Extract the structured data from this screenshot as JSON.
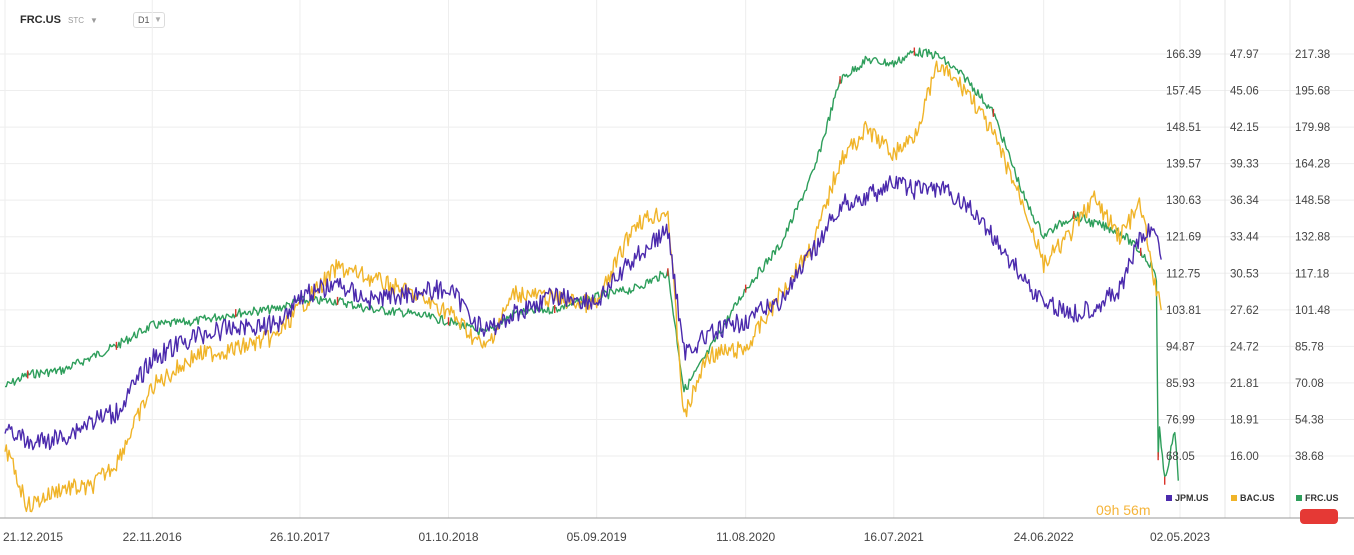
{
  "header": {
    "symbol": "FRC.US",
    "tag": "STC",
    "timeframe": "D1"
  },
  "timer": "09h 56m",
  "colors": {
    "jpm": "#4b2aad",
    "bac": "#f0b429",
    "frc_up": "#2e9e5b",
    "frc_down": "#d9342b",
    "grid": "#eeeeee",
    "axis_text": "#444444",
    "badge": "#e53935"
  },
  "chart_data": {
    "type": "line",
    "x_axis_dates": [
      "21.12.2015",
      "22.11.2016",
      "26.10.2017",
      "01.10.2018",
      "05.09.2019",
      "11.08.2020",
      "16.07.2021",
      "24.06.2022",
      "02.05.2023"
    ],
    "legend": [
      "JPM.US",
      "BAC.US",
      "FRC.US"
    ],
    "legend_position": "bottom-right",
    "grid": true,
    "axes": [
      {
        "series": "FRC.US",
        "ticks": [
          "166.39",
          "157.45",
          "148.51",
          "139.57",
          "130.63",
          "121.69",
          "112.75",
          "103.81",
          "94.87",
          "85.93",
          "76.99",
          "68.05"
        ]
      },
      {
        "series": "BAC.US",
        "ticks": [
          "47.97",
          "45.06",
          "42.15",
          "39.33",
          "36.34",
          "33.44",
          "30.53",
          "27.62",
          "24.72",
          "21.81",
          "18.91",
          "16.00"
        ]
      },
      {
        "series": "JPM.US",
        "ticks": [
          "217.38",
          "195.68",
          "179.98",
          "164.28",
          "148.58",
          "132.88",
          "117.18",
          "101.48",
          "85.78",
          "70.08",
          "54.38",
          "38.68"
        ]
      }
    ],
    "series": [
      {
        "name": "JPM.US",
        "axis": "JPM.US",
        "x": [
          "2015-12-21",
          "2016-02-11",
          "2016-05-01",
          "2016-07-01",
          "2016-09-01",
          "2016-11-22",
          "2017-03-01",
          "2017-06-01",
          "2017-09-01",
          "2017-10-26",
          "2018-01-20",
          "2018-04-01",
          "2018-07-01",
          "2018-10-01",
          "2018-12-24",
          "2019-03-01",
          "2019-06-01",
          "2019-09-05",
          "2019-12-01",
          "2020-02-15",
          "2020-03-23",
          "2020-05-15",
          "2020-08-11",
          "2020-11-01",
          "2021-01-15",
          "2021-03-15",
          "2021-05-15",
          "2021-07-16",
          "2021-09-01",
          "2021-10-25",
          "2022-01-01",
          "2022-03-01",
          "2022-05-15",
          "2022-06-24",
          "2022-09-01",
          "2022-10-15",
          "2022-12-15",
          "2023-02-01",
          "2023-03-06",
          "2023-03-20"
        ],
        "y": [
          53,
          44,
          47,
          54,
          58,
          82,
          92,
          96,
          97,
          110,
          115,
          108,
          111,
          113,
          94,
          102,
          110,
          107,
          127,
          139,
          85,
          92,
          99,
          108,
          130,
          150,
          154,
          160,
          157,
          158,
          150,
          136,
          116,
          107,
          102,
          105,
          112,
          136,
          140,
          126
        ]
      },
      {
        "name": "BAC.US",
        "axis": "BAC.US",
        "x": [
          "2015-12-21",
          "2016-02-11",
          "2016-05-01",
          "2016-07-01",
          "2016-09-01",
          "2016-11-22",
          "2017-03-01",
          "2017-06-01",
          "2017-09-01",
          "2017-10-26",
          "2018-01-20",
          "2018-04-01",
          "2018-07-01",
          "2018-10-01",
          "2018-12-24",
          "2019-03-01",
          "2019-06-01",
          "2019-09-05",
          "2019-12-01",
          "2020-02-15",
          "2020-03-23",
          "2020-05-15",
          "2020-08-11",
          "2020-11-01",
          "2021-01-15",
          "2021-03-15",
          "2021-05-15",
          "2021-07-16",
          "2021-09-01",
          "2021-10-25",
          "2022-01-01",
          "2022-03-01",
          "2022-05-15",
          "2022-06-24",
          "2022-09-01",
          "2022-10-15",
          "2022-12-15",
          "2023-02-01",
          "2023-03-06",
          "2023-03-20"
        ],
        "y": [
          16.8,
          12.0,
          13.5,
          13.4,
          15.5,
          21.5,
          24.0,
          24.5,
          25.5,
          27.8,
          31.0,
          30.2,
          29.0,
          27.5,
          24.5,
          29.0,
          28.5,
          28.0,
          34.5,
          35.5,
          19.0,
          24.0,
          24.5,
          29.0,
          33.0,
          39.5,
          42.0,
          40.0,
          41.5,
          47.0,
          45.0,
          41.5,
          35.5,
          31.2,
          34.0,
          36.5,
          33.5,
          36.0,
          29.5,
          27.6
        ]
      },
      {
        "name": "FRC.US",
        "axis": "FRC.US",
        "x": [
          "2015-12-21",
          "2016-02-11",
          "2016-05-01",
          "2016-07-01",
          "2016-09-01",
          "2016-11-22",
          "2017-03-01",
          "2017-06-01",
          "2017-09-01",
          "2017-10-26",
          "2018-01-20",
          "2018-04-01",
          "2018-07-01",
          "2018-10-01",
          "2018-12-24",
          "2019-03-01",
          "2019-06-01",
          "2019-09-05",
          "2019-12-01",
          "2020-02-15",
          "2020-03-23",
          "2020-05-15",
          "2020-08-11",
          "2020-11-01",
          "2021-01-15",
          "2021-03-15",
          "2021-05-15",
          "2021-07-16",
          "2021-09-01",
          "2021-10-25",
          "2022-01-01",
          "2022-03-01",
          "2022-05-15",
          "2022-06-24",
          "2022-09-01",
          "2022-10-15",
          "2022-12-15",
          "2023-02-01",
          "2023-03-03",
          "2023-03-09",
          "2023-03-13",
          "2023-03-16",
          "2023-03-20",
          "2023-03-28",
          "2023-04-20",
          "2023-04-28"
        ],
        "y": [
          85,
          88,
          89,
          92,
          95,
          100,
          101,
          103,
          104,
          106,
          106,
          104,
          103,
          101,
          98,
          103,
          104,
          107,
          109,
          113,
          84,
          93,
          109,
          120,
          138,
          160,
          165,
          164,
          167,
          166,
          160,
          152,
          130,
          122,
          127,
          125,
          123,
          118,
          114,
          110,
          68,
          76,
          70,
          62,
          74,
          62
        ]
      }
    ]
  },
  "price_tag": "",
  "legend_symbol_labels": [
    "JPM.US",
    "BAC.US",
    "FRC.US"
  ]
}
